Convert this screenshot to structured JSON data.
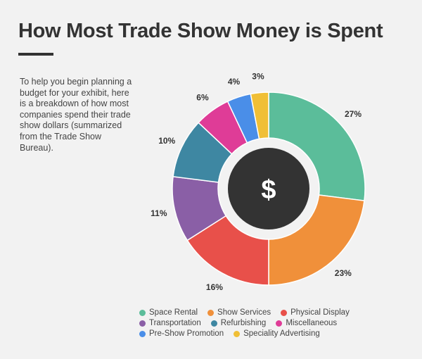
{
  "header": {
    "title": "How Most Trade Show Money is Spent"
  },
  "intro": {
    "text": "To help you begin planning a budget for your exhibit, here is a breakdown of how most companies spend their trade show dollars (summarized from the Trade Show Bureau)."
  },
  "center": {
    "symbol": "$",
    "circle_color": "#333333",
    "symbol_color": "#ffffff"
  },
  "chart_data": {
    "type": "pie",
    "style": "donut",
    "start_angle_deg": 0,
    "direction": "clockwise",
    "categories": [
      "Space Rental",
      "Show Services",
      "Physical Display",
      "Transportation",
      "Refurbishing",
      "Miscellaneous",
      "Pre-Show Promotion",
      "Speciality Advertising"
    ],
    "values": [
      27,
      23,
      16,
      11,
      10,
      6,
      4,
      3
    ],
    "labels": [
      "27%",
      "23%",
      "16%",
      "11%",
      "10%",
      "6%",
      "4%",
      "3%"
    ],
    "colors": [
      "#5bbd9a",
      "#f0903a",
      "#e8504a",
      "#8a5fa6",
      "#3e87a2",
      "#df3c97",
      "#4a8ee8",
      "#f0bf36"
    ],
    "legend_position": "bottom"
  }
}
